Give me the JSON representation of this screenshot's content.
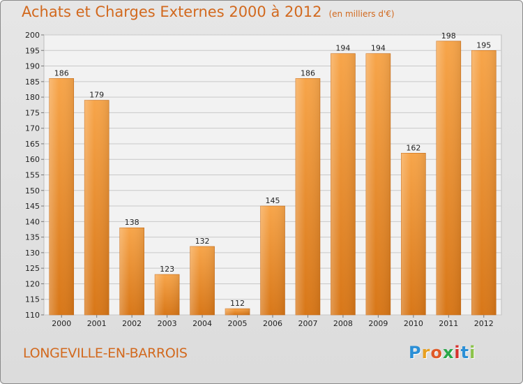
{
  "title": "Achats et Charges Externes 2000 à 2012",
  "subtitle": "(en milliers d'€)",
  "place": "LONGEVILLE-EN-BARROIS",
  "brand": {
    "letters": [
      "P",
      "r",
      "o",
      "x",
      "i",
      "t",
      "i"
    ],
    "colors": [
      "#2b8fd6",
      "#e8a020",
      "#e05a28",
      "#2aa84a",
      "#d6332e",
      "#2b8fd6",
      "#8bc34a"
    ]
  },
  "colors": {
    "accent": "#d2691e",
    "bar_light": "#f7a54a",
    "bar_dark": "#d87718"
  },
  "chart_data": {
    "type": "bar",
    "title": "Achats et Charges Externes 2000 à 2012",
    "subtitle": "(en milliers d'€)",
    "categories": [
      "2000",
      "2001",
      "2002",
      "2003",
      "2004",
      "2005",
      "2006",
      "2007",
      "2008",
      "2009",
      "2010",
      "2011",
      "2012"
    ],
    "values": [
      186,
      179,
      138,
      123,
      132,
      112,
      145,
      186,
      194,
      194,
      162,
      198,
      195
    ],
    "ylim": [
      110,
      200
    ],
    "yticks": [
      110,
      115,
      120,
      125,
      130,
      135,
      140,
      145,
      150,
      155,
      160,
      165,
      170,
      175,
      180,
      185,
      190,
      195,
      200
    ],
    "grid": true,
    "legend": "none"
  }
}
